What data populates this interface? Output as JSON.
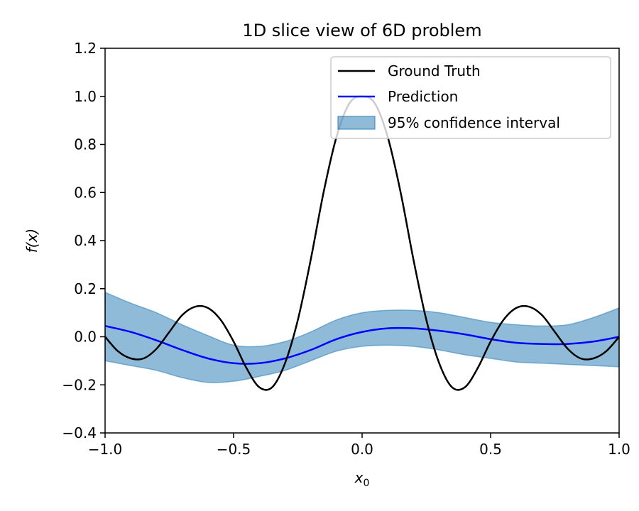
{
  "chart_data": {
    "type": "line",
    "title": "1D slice view of 6D problem",
    "xlabel": "x",
    "xlabel_subscript": "0",
    "ylabel": "f(x)",
    "xlim": [
      -1.0,
      1.0
    ],
    "ylim": [
      -0.4,
      1.2
    ],
    "xticks": [
      -1.0,
      -0.5,
      0.0,
      0.5,
      1.0
    ],
    "xtick_labels": [
      "−1.0",
      "−0.5",
      "0.0",
      "0.5",
      "1.0"
    ],
    "yticks": [
      -0.4,
      -0.2,
      0.0,
      0.2,
      0.4,
      0.6,
      0.8,
      1.0,
      1.2
    ],
    "ytick_labels": [
      "−0.4",
      "−0.2",
      "0.0",
      "0.2",
      "0.4",
      "0.6",
      "0.8",
      "1.0",
      "1.2"
    ],
    "grid": false,
    "legend": {
      "placement": "top-right",
      "entries": [
        "Ground Truth",
        "Prediction",
        "95% confidence interval"
      ]
    },
    "colors": {
      "ground_truth": "#000000",
      "prediction": "#0000ff",
      "band_fill": "#1f77b4"
    },
    "series": [
      {
        "name": "Ground Truth",
        "x": [
          -1.0,
          -0.95,
          -0.9,
          -0.85,
          -0.8,
          -0.75,
          -0.7,
          -0.65,
          -0.6,
          -0.55,
          -0.5,
          -0.45,
          -0.4,
          -0.35,
          -0.3,
          -0.25,
          -0.2,
          -0.15,
          -0.1,
          -0.05,
          0.0,
          0.05,
          0.1,
          0.15,
          0.2,
          0.25,
          0.3,
          0.35,
          0.4,
          0.45,
          0.5,
          0.55,
          0.6,
          0.65,
          0.7,
          0.75,
          0.8,
          0.85,
          0.9,
          0.95,
          1.0
        ],
        "y": [
          0.0,
          -0.06,
          -0.09,
          -0.09,
          -0.05,
          0.02,
          0.09,
          0.125,
          0.12,
          0.07,
          -0.02,
          -0.13,
          -0.21,
          -0.21,
          -0.11,
          0.07,
          0.32,
          0.6,
          0.83,
          0.97,
          1.0,
          0.97,
          0.83,
          0.6,
          0.32,
          0.07,
          -0.11,
          -0.21,
          -0.21,
          -0.13,
          -0.02,
          0.07,
          0.12,
          0.125,
          0.09,
          0.02,
          -0.05,
          -0.09,
          -0.09,
          -0.06,
          0.0
        ]
      },
      {
        "name": "Prediction",
        "x": [
          -1.0,
          -0.9,
          -0.8,
          -0.7,
          -0.6,
          -0.5,
          -0.4,
          -0.3,
          -0.2,
          -0.1,
          0.0,
          0.1,
          0.2,
          0.3,
          0.4,
          0.5,
          0.6,
          0.7,
          0.8,
          0.9,
          1.0
        ],
        "y": [
          0.045,
          0.02,
          -0.015,
          -0.055,
          -0.09,
          -0.11,
          -0.11,
          -0.09,
          -0.055,
          -0.01,
          0.02,
          0.035,
          0.035,
          0.025,
          0.01,
          -0.01,
          -0.025,
          -0.03,
          -0.03,
          -0.02,
          0.0
        ]
      }
    ],
    "confidence_band": {
      "name": "95% confidence interval",
      "x": [
        -1.0,
        -0.9,
        -0.8,
        -0.7,
        -0.6,
        -0.5,
        -0.4,
        -0.3,
        -0.2,
        -0.1,
        0.0,
        0.1,
        0.2,
        0.3,
        0.4,
        0.5,
        0.6,
        0.7,
        0.8,
        0.9,
        1.0
      ],
      "lower": [
        -0.1,
        -0.12,
        -0.14,
        -0.17,
        -0.19,
        -0.185,
        -0.165,
        -0.14,
        -0.1,
        -0.06,
        -0.04,
        -0.035,
        -0.04,
        -0.055,
        -0.075,
        -0.09,
        -0.105,
        -0.11,
        -0.115,
        -0.12,
        -0.125
      ],
      "upper": [
        0.185,
        0.14,
        0.1,
        0.05,
        0.005,
        -0.035,
        -0.04,
        -0.02,
        0.02,
        0.07,
        0.1,
        0.11,
        0.11,
        0.1,
        0.08,
        0.06,
        0.05,
        0.045,
        0.05,
        0.08,
        0.12
      ]
    }
  }
}
